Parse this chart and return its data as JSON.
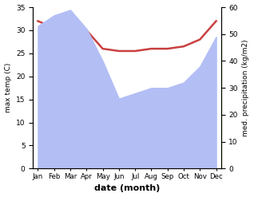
{
  "months": [
    "Jan",
    "Feb",
    "Mar",
    "Apr",
    "May",
    "Jun",
    "Jul",
    "Aug",
    "Sep",
    "Oct",
    "Nov",
    "Dec"
  ],
  "max_temp": [
    32,
    30.5,
    33.5,
    30,
    26,
    25.5,
    25.5,
    26,
    26,
    26.5,
    28,
    32
  ],
  "precipitation": [
    53,
    57,
    59,
    52,
    40,
    26,
    28,
    30,
    30,
    32,
    38,
    49
  ],
  "temp_ylim": [
    0,
    35
  ],
  "precip_ylim": [
    0,
    60
  ],
  "temp_yticks": [
    0,
    5,
    10,
    15,
    20,
    25,
    30,
    35
  ],
  "precip_yticks": [
    0,
    10,
    20,
    30,
    40,
    50,
    60
  ],
  "fill_color": "#b3bef5",
  "line_color": "#c94040",
  "line_width": 1.8,
  "xlabel": "date (month)",
  "ylabel_left": "max temp (C)",
  "ylabel_right": "med. precipitation (kg/m2)",
  "bg_color": "#ffffff"
}
